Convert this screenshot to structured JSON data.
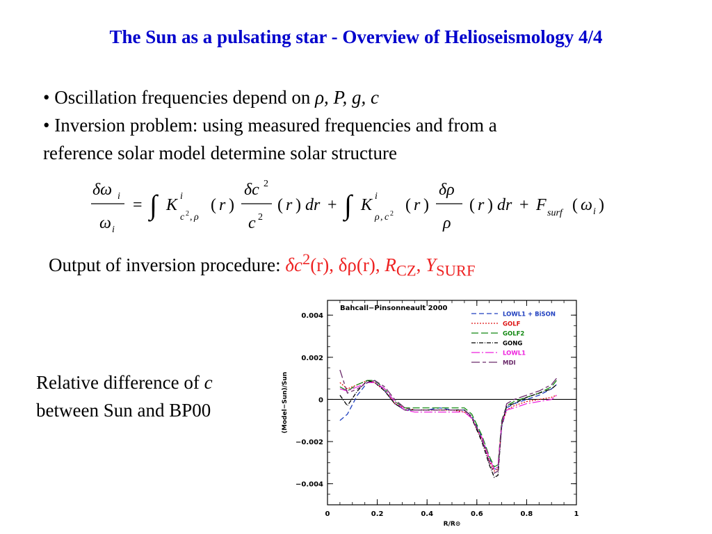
{
  "title": "The Sun as a pulsating star - Overview of Helioseismology 4/4",
  "bullets": {
    "b1_prefix": "• Oscillation frequencies depend on ",
    "b1_vars": "ρ, P, g, c",
    "b2_line1": "• Inversion problem: using measured frequencies and from a",
    "b2_line2": "reference solar model determine solar structure"
  },
  "output": {
    "prefix": "Output of inversion procedure: ",
    "dc2": "δc",
    "dc2_exp": "2",
    "dc2_r": "(r), ",
    "drho": "δρ(r), ",
    "rcz": "R",
    "rcz_sub": "CZ",
    "comma": ", ",
    "ysurf": "Y",
    "ysurf_sub": "SURF"
  },
  "caption": {
    "line1_prefix": "Relative difference of ",
    "line1_var": "c",
    "line2": "between Sun and BP00"
  },
  "chart_data": {
    "type": "line",
    "title": "Bahcall−Pinsonneault 2000",
    "xlabel": "R/R⊙",
    "ylabel": "(Model−Sun)/Sun",
    "xlim": [
      0,
      1
    ],
    "ylim": [
      -0.005,
      0.0047
    ],
    "xticks": [
      "0",
      "0.2",
      "0.4",
      "0.6",
      "0.8",
      "1"
    ],
    "yticks": [
      {
        "value": 0.004,
        "label": "0.004"
      },
      {
        "value": 0.002,
        "label": "0.002"
      },
      {
        "value": 0,
        "label": "0"
      },
      {
        "value": -0.002,
        "label": "−0.002"
      },
      {
        "value": -0.004,
        "label": "−0.004"
      }
    ],
    "legend_position": "top-right",
    "series": [
      {
        "name": "LOWL1 + BiSON",
        "color": "#1f3fbf",
        "dash": "7,4",
        "x": [
          0.05,
          0.08,
          0.12,
          0.16,
          0.19,
          0.23,
          0.27,
          0.31,
          0.35,
          0.4,
          0.45,
          0.5,
          0.55,
          0.58,
          0.62,
          0.65,
          0.67,
          0.685,
          0.7,
          0.72,
          0.75,
          0.8,
          0.85,
          0.9,
          0.92
        ],
        "y": [
          -0.001,
          -0.0007,
          0.0002,
          0.0008,
          0.0009,
          0.0004,
          -0.0002,
          -0.0005,
          -0.0005,
          -0.0005,
          -0.0004,
          -0.0005,
          -0.0005,
          -0.0008,
          -0.0018,
          -0.0028,
          -0.0033,
          -0.0033,
          -0.0013,
          -0.0004,
          -0.0002,
          0,
          0.0002,
          0.0005,
          0.0007
        ]
      },
      {
        "name": "GOLF",
        "color": "#dd1111",
        "dash": "2,2",
        "x": [
          0.05,
          0.08,
          0.12,
          0.16,
          0.19,
          0.23,
          0.27,
          0.31,
          0.35,
          0.4,
          0.45,
          0.5,
          0.55,
          0.58,
          0.62,
          0.65,
          0.67,
          0.685,
          0.7,
          0.72,
          0.75,
          0.8,
          0.85,
          0.9,
          0.92
        ],
        "y": [
          0.0008,
          0.0005,
          0.0007,
          0.0009,
          0.0008,
          0.0004,
          -0.0002,
          -0.0004,
          -0.0005,
          -0.0005,
          -0.0005,
          -0.0005,
          -0.0006,
          -0.0009,
          -0.0019,
          -0.0029,
          -0.0034,
          -0.0033,
          -0.0012,
          -0.0005,
          -0.0003,
          -0.0001,
          0,
          0.0001,
          0.0002
        ]
      },
      {
        "name": "GOLF2",
        "color": "#118811",
        "dash": "10,4",
        "x": [
          0.05,
          0.08,
          0.12,
          0.16,
          0.19,
          0.23,
          0.27,
          0.31,
          0.35,
          0.4,
          0.45,
          0.5,
          0.55,
          0.58,
          0.62,
          0.65,
          0.67,
          0.685,
          0.7,
          0.72,
          0.75,
          0.8,
          0.85,
          0.9,
          0.92
        ],
        "y": [
          0.0006,
          0.0004,
          0.0007,
          0.0009,
          0.0009,
          0.0005,
          -0.0001,
          -0.0004,
          -0.0004,
          -0.0004,
          -0.0004,
          -0.0004,
          -0.0004,
          -0.0007,
          -0.0017,
          -0.0027,
          -0.0032,
          -0.0031,
          -0.001,
          -0.0003,
          -0.0001,
          0.0001,
          0.0003,
          0.0006,
          0.0009
        ]
      },
      {
        "name": "GONG",
        "color": "#000000",
        "dash": "6,2,1,2",
        "x": [
          0.05,
          0.08,
          0.12,
          0.16,
          0.19,
          0.23,
          0.27,
          0.31,
          0.35,
          0.4,
          0.45,
          0.5,
          0.55,
          0.58,
          0.62,
          0.65,
          0.67,
          0.685,
          0.7,
          0.72,
          0.75,
          0.8,
          0.85,
          0.9,
          0.92
        ],
        "y": [
          0.0002,
          -0.0003,
          0.0004,
          0.0009,
          0.0008,
          0.0004,
          -0.0002,
          -0.0005,
          -0.0005,
          -0.0005,
          -0.0005,
          -0.0005,
          -0.0005,
          -0.0009,
          -0.002,
          -0.0031,
          -0.0037,
          -0.0036,
          -0.0012,
          -0.0003,
          -0.0002,
          0.0001,
          0.0003,
          0.0005,
          0.0007
        ]
      },
      {
        "name": "LOWL1",
        "color": "#ee22dd",
        "dash": "12,3,2,3",
        "x": [
          0.05,
          0.08,
          0.12,
          0.16,
          0.19,
          0.23,
          0.27,
          0.31,
          0.35,
          0.4,
          0.45,
          0.5,
          0.55,
          0.58,
          0.62,
          0.65,
          0.67,
          0.685,
          0.7,
          0.72,
          0.75,
          0.8,
          0.85,
          0.9,
          0.92
        ],
        "y": [
          0.0005,
          0.0004,
          0.0006,
          0.0008,
          0.0008,
          0.0005,
          -0.0001,
          -0.0005,
          -0.0006,
          -0.0006,
          -0.0006,
          -0.0006,
          -0.0006,
          -0.0009,
          -0.0018,
          -0.0028,
          -0.0033,
          -0.0032,
          -0.0011,
          -0.0005,
          -0.0004,
          -0.0002,
          -0.0001,
          0,
          0.0002
        ]
      },
      {
        "name": "MDI",
        "color": "#6a2a6a",
        "dash": "12,4,5,4",
        "x": [
          0.05,
          0.08,
          0.12,
          0.16,
          0.19,
          0.23,
          0.27,
          0.31,
          0.35,
          0.4,
          0.45,
          0.5,
          0.55,
          0.58,
          0.62,
          0.65,
          0.67,
          0.685,
          0.7,
          0.72,
          0.75,
          0.8,
          0.85,
          0.9,
          0.92
        ],
        "y": [
          0.0014,
          0.0003,
          0.0005,
          0.0008,
          0.0009,
          0.0006,
          0,
          -0.0004,
          -0.0005,
          -0.0005,
          -0.0005,
          -0.0005,
          -0.0005,
          -0.0008,
          -0.0019,
          -0.003,
          -0.0035,
          -0.0034,
          -0.0011,
          -0.0002,
          0,
          0.0002,
          0.0004,
          0.0007,
          0.001
        ]
      }
    ]
  }
}
